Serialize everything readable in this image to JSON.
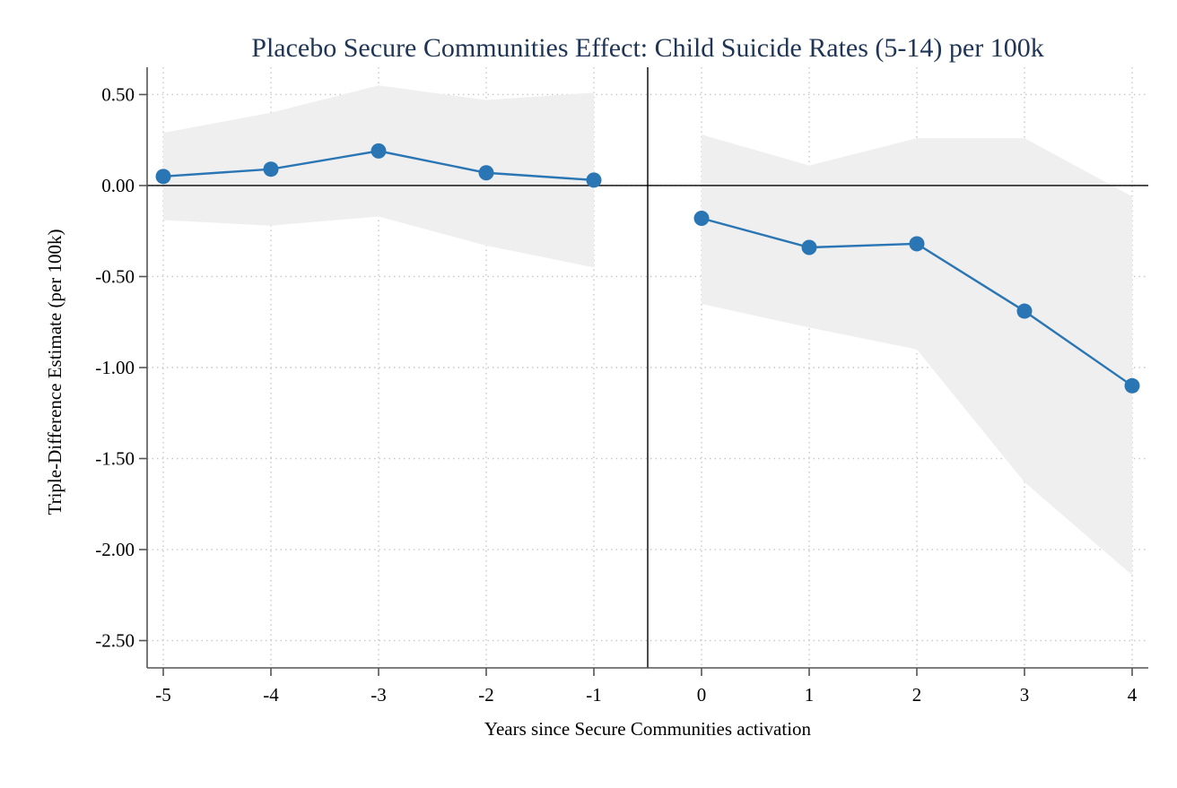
{
  "chart_data": {
    "type": "line",
    "title": "Placebo Secure Communities Effect: Child Suicide Rates (5-14) per 100k",
    "xlabel": "Years since Secure Communities activation",
    "ylabel": "Triple-Difference Estimate (per 100k)",
    "x_ticks": [
      -5,
      -4,
      -3,
      -2,
      -1,
      0,
      1,
      2,
      3,
      4
    ],
    "x_tick_labels": [
      "-5",
      "-4",
      "-3",
      "-2",
      "-1",
      "0",
      "1",
      "2",
      "3",
      "4"
    ],
    "y_ticks": [
      0.5,
      0.0,
      -0.5,
      -1.0,
      -1.5,
      -2.0,
      -2.5
    ],
    "y_tick_labels": [
      "0.50",
      "0.00",
      "-0.50",
      "-1.00",
      "-1.50",
      "-2.00",
      "-2.50"
    ],
    "xlim": [
      -5.15,
      4.15
    ],
    "ylim": [
      -2.65,
      0.65
    ],
    "grid": true,
    "reference_lines": {
      "y": 0,
      "x": -0.5
    },
    "colors": {
      "series": "#2a76b4",
      "ci_band": "#efefef",
      "title": "#1f3556"
    },
    "segments": [
      {
        "x": [
          -5,
          -4,
          -3,
          -2,
          -1
        ],
        "y": [
          0.05,
          0.09,
          0.19,
          0.07,
          0.03
        ],
        "ci_lower": [
          -0.19,
          -0.22,
          -0.17,
          -0.33,
          -0.45
        ],
        "ci_upper": [
          0.29,
          0.4,
          0.55,
          0.47,
          0.51
        ]
      },
      {
        "x": [
          0,
          1,
          2,
          3,
          4
        ],
        "y": [
          -0.18,
          -0.34,
          -0.32,
          -0.69,
          -1.1
        ],
        "ci_lower": [
          -0.65,
          -0.78,
          -0.9,
          -1.63,
          -2.14
        ],
        "ci_upper": [
          0.28,
          0.11,
          0.26,
          0.26,
          -0.06
        ]
      }
    ]
  }
}
